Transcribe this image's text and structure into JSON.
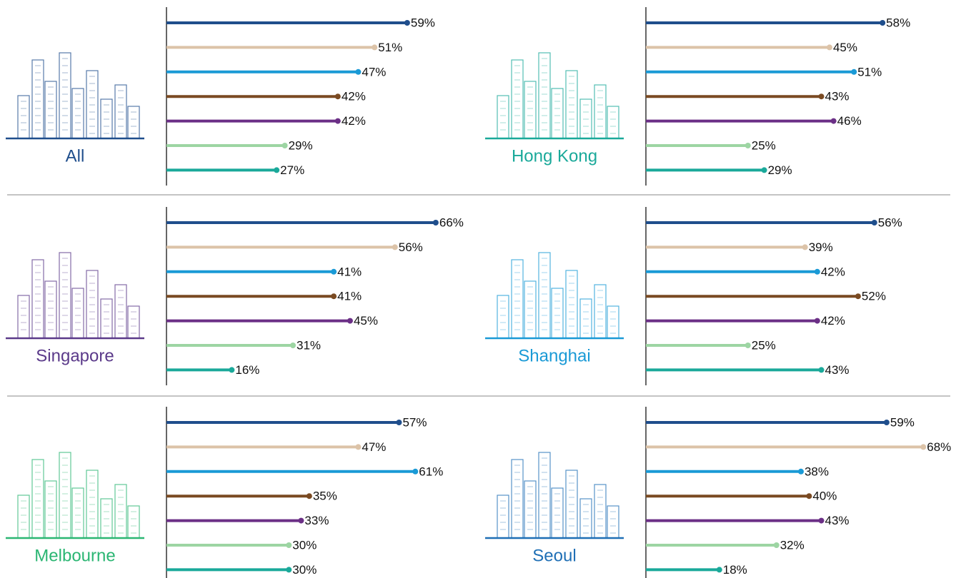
{
  "chart_data": [
    {
      "type": "bar",
      "orientation": "horizontal",
      "title": "All",
      "title_color": "#1f4e8c",
      "categories": [
        null,
        null,
        null,
        null,
        null,
        null,
        null
      ],
      "values": [
        59,
        51,
        47,
        42,
        42,
        29,
        27
      ],
      "value_labels": [
        "59%",
        "51%",
        "47%",
        "42%",
        "42%",
        "29%",
        "27%"
      ],
      "colors": [
        "#1f4e8c",
        "#dcc3a8",
        "#1a9ad6",
        "#7a4a22",
        "#6b2f86",
        "#9dd5a3",
        "#1aa99a"
      ]
    },
    {
      "type": "bar",
      "orientation": "horizontal",
      "title": "Hong Kong",
      "title_color": "#1aa99a",
      "categories": [
        null,
        null,
        null,
        null,
        null,
        null,
        null
      ],
      "values": [
        58,
        45,
        51,
        43,
        46,
        25,
        29
      ],
      "value_labels": [
        "58%",
        "45%",
        "51%",
        "43%",
        "46%",
        "25%",
        "29%"
      ],
      "colors": [
        "#1f4e8c",
        "#dcc3a8",
        "#1a9ad6",
        "#7a4a22",
        "#6b2f86",
        "#9dd5a3",
        "#1aa99a"
      ]
    },
    {
      "type": "bar",
      "orientation": "horizontal",
      "title": "Singapore",
      "title_color": "#5b3a8a",
      "categories": [
        null,
        null,
        null,
        null,
        null,
        null,
        null
      ],
      "values": [
        66,
        56,
        41,
        41,
        45,
        31,
        16
      ],
      "value_labels": [
        "66%",
        "56%",
        "41%",
        "41%",
        "45%",
        "31%",
        "16%"
      ],
      "colors": [
        "#1f4e8c",
        "#dcc3a8",
        "#1a9ad6",
        "#7a4a22",
        "#6b2f86",
        "#9dd5a3",
        "#1aa99a"
      ]
    },
    {
      "type": "bar",
      "orientation": "horizontal",
      "title": "Shanghai",
      "title_color": "#1a9ad6",
      "categories": [
        null,
        null,
        null,
        null,
        null,
        null,
        null
      ],
      "values": [
        56,
        39,
        42,
        52,
        42,
        25,
        43
      ],
      "value_labels": [
        "56%",
        "39%",
        "42%",
        "52%",
        "42%",
        "25%",
        "43%"
      ],
      "colors": [
        "#1f4e8c",
        "#dcc3a8",
        "#1a9ad6",
        "#7a4a22",
        "#6b2f86",
        "#9dd5a3",
        "#1aa99a"
      ]
    },
    {
      "type": "bar",
      "orientation": "horizontal",
      "title": "Melbourne",
      "title_color": "#2bb673",
      "categories": [
        null,
        null,
        null,
        null,
        null,
        null,
        null
      ],
      "values": [
        57,
        47,
        61,
        35,
        33,
        30,
        30
      ],
      "value_labels": [
        "57%",
        "47%",
        "61%",
        "35%",
        "33%",
        "30%",
        "30%"
      ],
      "colors": [
        "#1f4e8c",
        "#dcc3a8",
        "#1a9ad6",
        "#7a4a22",
        "#6b2f86",
        "#9dd5a3",
        "#1aa99a"
      ]
    },
    {
      "type": "bar",
      "orientation": "horizontal",
      "title": "Seoul",
      "title_color": "#1f6fb5",
      "categories": [
        null,
        null,
        null,
        null,
        null,
        null,
        null
      ],
      "values": [
        59,
        68,
        38,
        40,
        43,
        32,
        18
      ],
      "value_labels": [
        "59%",
        "68%",
        "38%",
        "40%",
        "43%",
        "32%",
        "18%"
      ],
      "colors": [
        "#1f4e8c",
        "#dcc3a8",
        "#1a9ad6",
        "#7a4a22",
        "#6b2f86",
        "#9dd5a3",
        "#1aa99a"
      ]
    }
  ]
}
